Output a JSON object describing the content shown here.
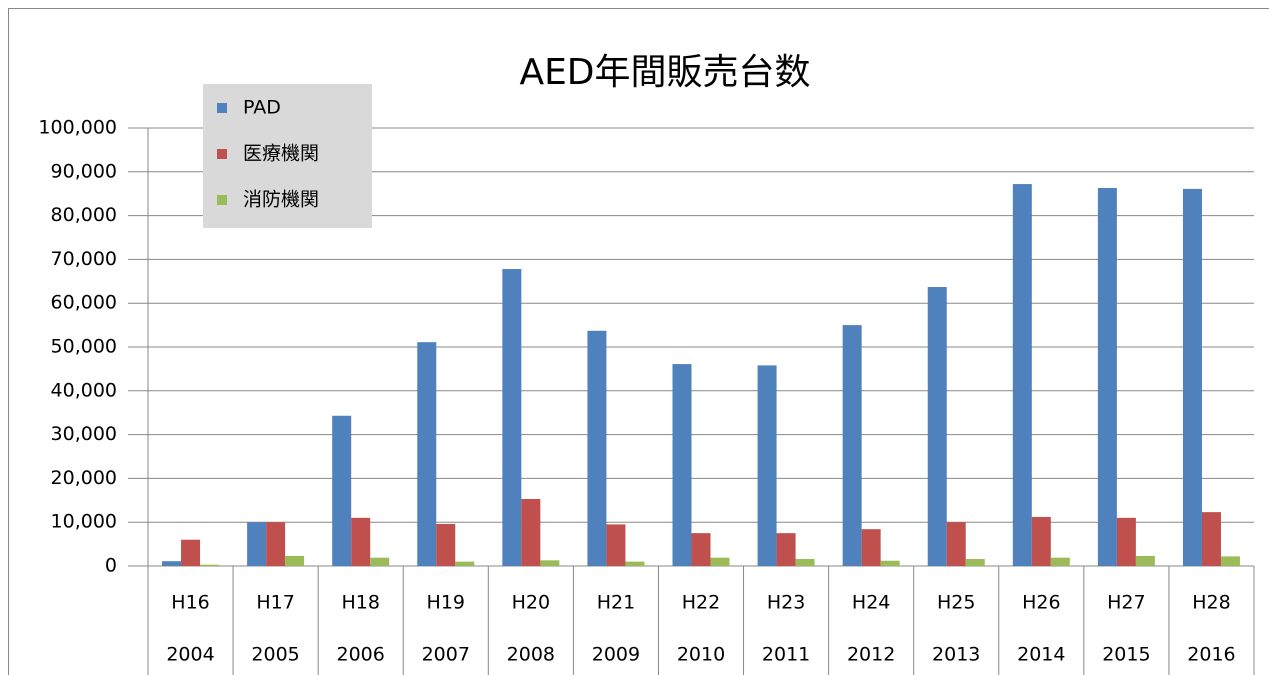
{
  "chart_data": {
    "type": "bar",
    "title": "AED年間販売台数",
    "categories": [
      "H16",
      "H17",
      "H18",
      "H19",
      "H20",
      "H21",
      "H22",
      "H23",
      "H24",
      "H25",
      "H26",
      "H27",
      "H28"
    ],
    "category_years": [
      "2004",
      "2005",
      "2006",
      "2007",
      "2008",
      "2009",
      "2010",
      "2011",
      "2012",
      "2013",
      "2014",
      "2015",
      "2016"
    ],
    "series": [
      {
        "name": "PAD",
        "color": "#4f81bd",
        "values": [
          1100,
          10000,
          34300,
          51100,
          67800,
          53700,
          46100,
          45800,
          55000,
          63700,
          87200,
          86300,
          86100
        ]
      },
      {
        "name": "医療機関",
        "color": "#c0504d",
        "values": [
          6000,
          10000,
          11000,
          9600,
          15300,
          9500,
          7500,
          7500,
          8400,
          10000,
          11200,
          11000,
          12300
        ]
      },
      {
        "name": "消防機関",
        "color": "#9bbb59",
        "values": [
          300,
          2300,
          1900,
          1000,
          1300,
          1000,
          1900,
          1600,
          1200,
          1600,
          1900,
          2300,
          2200
        ]
      }
    ],
    "ylim": [
      0,
      100000
    ],
    "yticks": [
      0,
      {
        "value": 10000,
        "label": "10,000"
      },
      {
        "value": 20000,
        "label": "20,000"
      },
      {
        "value": 30000,
        "label": "30,000"
      },
      {
        "value": 40000,
        "label": "40,000"
      },
      {
        "value": 50000,
        "label": "50,000"
      },
      {
        "value": 60000,
        "label": "60,000"
      },
      {
        "value": 70000,
        "label": "70,000"
      },
      {
        "value": 80000,
        "label": "80,000"
      },
      {
        "value": 90000,
        "label": "90,000"
      },
      {
        "value": 100000,
        "label": "100,000"
      }
    ],
    "grid": true,
    "legend": "top-left"
  }
}
